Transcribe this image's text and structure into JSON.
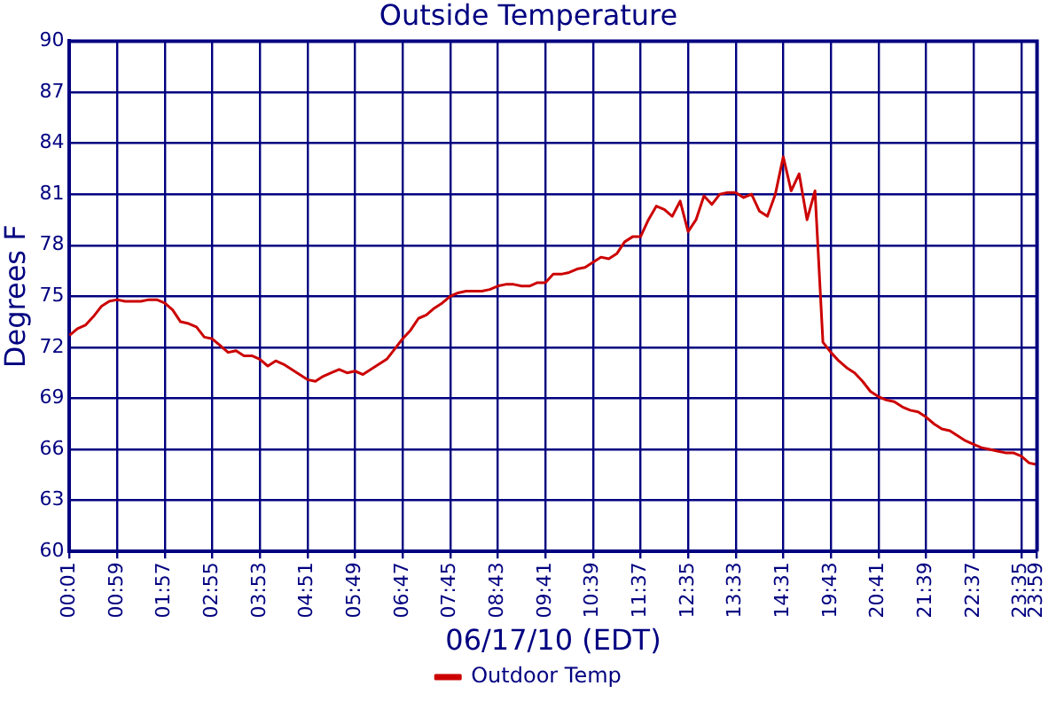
{
  "chart_data": {
    "type": "line",
    "title": "Outside Temperature",
    "xlabel": "06/17/10 (EDT)",
    "ylabel": "Degrees F",
    "categories": [
      "00:01",
      null,
      null,
      null,
      null,
      null,
      "00:59",
      null,
      null,
      null,
      null,
      null,
      "01:57",
      null,
      null,
      null,
      null,
      null,
      "02:55",
      null,
      null,
      null,
      null,
      null,
      "03:53",
      null,
      null,
      null,
      null,
      null,
      "04:51",
      null,
      null,
      null,
      null,
      null,
      "05:49",
      null,
      null,
      null,
      null,
      null,
      "06:47",
      null,
      null,
      null,
      null,
      null,
      "07:45",
      null,
      null,
      null,
      null,
      null,
      "08:43",
      null,
      null,
      null,
      null,
      null,
      "09:41",
      null,
      null,
      null,
      null,
      null,
      "10:39",
      null,
      null,
      null,
      null,
      null,
      "11:37",
      null,
      null,
      null,
      null,
      null,
      "12:35",
      null,
      null,
      null,
      null,
      null,
      "13:33",
      null,
      null,
      null,
      null,
      null,
      "14:31",
      null,
      null,
      null,
      null,
      null,
      "19:43",
      null,
      null,
      null,
      null,
      null,
      "20:41",
      null,
      null,
      null,
      null,
      null,
      "21:39",
      null,
      null,
      null,
      null,
      null,
      "22:37",
      null,
      null,
      null,
      null,
      null,
      "23:35",
      null,
      "23:59"
    ],
    "series": [
      {
        "name": "Outdoor Temp",
        "color": "#cc0000",
        "values": [
          72.7,
          73.1,
          73.3,
          73.8,
          74.4,
          74.7,
          74.8,
          74.7,
          74.7,
          74.7,
          74.8,
          74.8,
          74.6,
          74.2,
          73.5,
          73.4,
          73.2,
          72.6,
          72.5,
          72.1,
          71.7,
          71.8,
          71.5,
          71.5,
          71.3,
          70.9,
          71.2,
          71.0,
          70.7,
          70.4,
          70.1,
          70.0,
          70.3,
          70.5,
          70.7,
          70.5,
          70.6,
          70.4,
          70.7,
          71.0,
          71.3,
          71.9,
          72.5,
          73.0,
          73.7,
          73.9,
          74.3,
          74.6,
          75.0,
          75.2,
          75.3,
          75.3,
          75.3,
          75.4,
          75.6,
          75.7,
          75.7,
          75.6,
          75.6,
          75.8,
          75.8,
          76.3,
          76.3,
          76.4,
          76.6,
          76.7,
          77.0,
          77.3,
          77.2,
          77.5,
          78.2,
          78.5,
          78.5,
          79.5,
          80.3,
          80.1,
          79.7,
          80.6,
          78.8,
          79.5,
          80.9,
          80.4,
          81.0,
          81.1,
          81.1,
          80.8,
          81.0,
          80.0,
          79.7,
          81.0,
          83.2,
          81.2,
          82.2,
          79.5,
          81.2,
          72.3,
          71.7,
          71.2,
          70.8,
          70.5,
          70.0,
          69.4,
          69.1,
          68.9,
          68.8,
          68.5,
          68.3,
          68.2,
          67.9,
          67.5,
          67.2,
          67.1,
          66.8,
          66.5,
          66.3,
          66.1,
          66.0,
          65.9,
          65.8,
          65.8,
          65.6,
          65.2,
          65.1
        ]
      }
    ],
    "ylim": [
      60,
      90
    ],
    "yticks": [
      60,
      63,
      66,
      69,
      72,
      75,
      78,
      81,
      84,
      87,
      90
    ],
    "grid": true,
    "legend": "bottom",
    "marker": "none",
    "line_style": "solid"
  }
}
